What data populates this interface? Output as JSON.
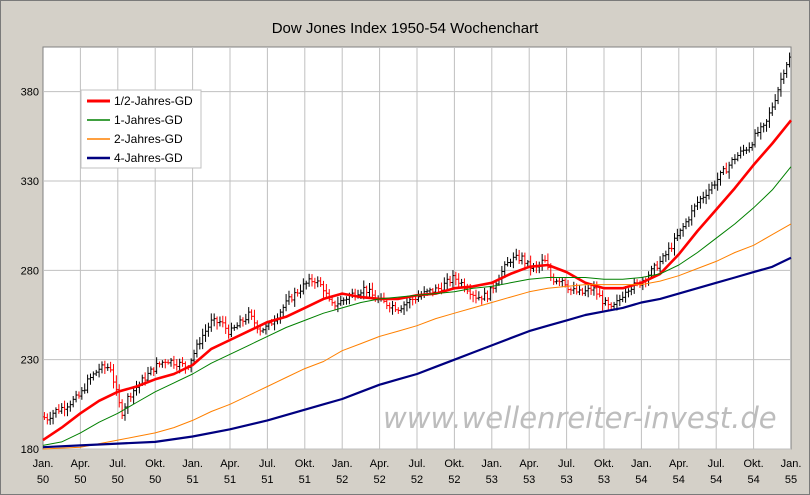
{
  "chart_data": {
    "type": "line",
    "title": "Dow Jones Index 1950-54 Wochenchart",
    "watermark": "www.wellenreiter-invest.de",
    "ylim": [
      180,
      405
    ],
    "yticks": [
      180,
      230,
      280,
      330,
      380
    ],
    "xlim": [
      0,
      20
    ],
    "xticks": [
      {
        "q": 0,
        "label": [
          "Jan.",
          "50"
        ]
      },
      {
        "q": 1,
        "label": [
          "Apr.",
          "50"
        ]
      },
      {
        "q": 2,
        "label": [
          "Jul.",
          "50"
        ]
      },
      {
        "q": 3,
        "label": [
          "Okt.",
          "50"
        ]
      },
      {
        "q": 4,
        "label": [
          "Jan.",
          "51"
        ]
      },
      {
        "q": 5,
        "label": [
          "Apr.",
          "51"
        ]
      },
      {
        "q": 6,
        "label": [
          "Jul.",
          "51"
        ]
      },
      {
        "q": 7,
        "label": [
          "Okt.",
          "51"
        ]
      },
      {
        "q": 8,
        "label": [
          "Jan.",
          "52"
        ]
      },
      {
        "q": 9,
        "label": [
          "Apr.",
          "52"
        ]
      },
      {
        "q": 10,
        "label": [
          "Jul.",
          "52"
        ]
      },
      {
        "q": 11,
        "label": [
          "Okt.",
          "52"
        ]
      },
      {
        "q": 12,
        "label": [
          "Jan.",
          "53"
        ]
      },
      {
        "q": 13,
        "label": [
          "Apr.",
          "53"
        ]
      },
      {
        "q": 14,
        "label": [
          "Jul.",
          "53"
        ]
      },
      {
        "q": 15,
        "label": [
          "Okt.",
          "53"
        ]
      },
      {
        "q": 16,
        "label": [
          "Jan.",
          "54"
        ]
      },
      {
        "q": 17,
        "label": [
          "Apr.",
          "54"
        ]
      },
      {
        "q": 18,
        "label": [
          "Jul.",
          "54"
        ]
      },
      {
        "q": 19,
        "label": [
          "Okt.",
          "54"
        ]
      },
      {
        "q": 20,
        "label": [
          "Jan.",
          "55"
        ]
      }
    ],
    "grid": true,
    "legend_position": "top-left",
    "colors": {
      "background": "#d4d0c8",
      "plot": "#ffffff",
      "grid": "#c0c0c0",
      "bar_up": "#000000",
      "bar_down": "#ff0000"
    },
    "price_anchors": [
      [
        0,
        198
      ],
      [
        0.1,
        197
      ],
      [
        0.3,
        201
      ],
      [
        0.5,
        203
      ],
      [
        0.8,
        207
      ],
      [
        1.0,
        210
      ],
      [
        1.2,
        218
      ],
      [
        1.5,
        225
      ],
      [
        1.8,
        226
      ],
      [
        2.0,
        208
      ],
      [
        2.1,
        200
      ],
      [
        2.3,
        210
      ],
      [
        2.6,
        217
      ],
      [
        3.0,
        226
      ],
      [
        3.3,
        230
      ],
      [
        3.6,
        228
      ],
      [
        3.85,
        226
      ],
      [
        4.0,
        232
      ],
      [
        4.25,
        243
      ],
      [
        4.5,
        251
      ],
      [
        4.75,
        251
      ],
      [
        5.0,
        245
      ],
      [
        5.2,
        249
      ],
      [
        5.5,
        255
      ],
      [
        5.8,
        247
      ],
      [
        6.0,
        248
      ],
      [
        6.3,
        256
      ],
      [
        6.6,
        264
      ],
      [
        7.0,
        272
      ],
      [
        7.25,
        275
      ],
      [
        7.5,
        270
      ],
      [
        7.7,
        260
      ],
      [
        8.0,
        263
      ],
      [
        8.3,
        267
      ],
      [
        8.6,
        270
      ],
      [
        8.9,
        264
      ],
      [
        9.1,
        262
      ],
      [
        9.5,
        259
      ],
      [
        9.8,
        263
      ],
      [
        10.2,
        267
      ],
      [
        10.6,
        270
      ],
      [
        11.0,
        276
      ],
      [
        11.3,
        271
      ],
      [
        11.6,
        265
      ],
      [
        11.9,
        266
      ],
      [
        12.2,
        277
      ],
      [
        12.5,
        286
      ],
      [
        12.8,
        287
      ],
      [
        13.0,
        282
      ],
      [
        13.2,
        281
      ],
      [
        13.4,
        286
      ],
      [
        13.6,
        275
      ],
      [
        13.9,
        275
      ],
      [
        14.1,
        269
      ],
      [
        14.4,
        267
      ],
      [
        14.7,
        270
      ],
      [
        15.0,
        262
      ],
      [
        15.2,
        258
      ],
      [
        15.4,
        263
      ],
      [
        15.6,
        270
      ],
      [
        15.9,
        272
      ],
      [
        16.1,
        276
      ],
      [
        16.3,
        280
      ],
      [
        16.6,
        287
      ],
      [
        17.0,
        300
      ],
      [
        17.5,
        318
      ],
      [
        18.0,
        330
      ],
      [
        18.5,
        343
      ],
      [
        18.9,
        350
      ],
      [
        19.1,
        357
      ],
      [
        19.3,
        360
      ],
      [
        19.6,
        378
      ],
      [
        19.85,
        395
      ],
      [
        20.0,
        400
      ]
    ],
    "series": [
      {
        "name": "1/2-Jahres-GD",
        "color": "#ff0000",
        "values": [
          [
            0,
            185
          ],
          [
            0.5,
            192
          ],
          [
            1,
            200
          ],
          [
            1.5,
            207
          ],
          [
            2,
            212
          ],
          [
            2.5,
            215
          ],
          [
            3,
            219
          ],
          [
            3.5,
            222
          ],
          [
            4,
            227
          ],
          [
            4.5,
            236
          ],
          [
            5,
            241
          ],
          [
            5.5,
            246
          ],
          [
            6,
            251
          ],
          [
            6.5,
            254
          ],
          [
            7,
            259
          ],
          [
            7.5,
            264
          ],
          [
            8,
            267
          ],
          [
            8.5,
            265
          ],
          [
            9,
            264
          ],
          [
            9.5,
            264
          ],
          [
            10,
            266
          ],
          [
            10.5,
            267
          ],
          [
            11,
            270
          ],
          [
            11.5,
            271
          ],
          [
            12,
            273
          ],
          [
            12.5,
            278
          ],
          [
            13,
            282
          ],
          [
            13.5,
            283
          ],
          [
            14,
            279
          ],
          [
            14.5,
            273
          ],
          [
            15,
            270
          ],
          [
            15.5,
            270
          ],
          [
            16,
            273
          ],
          [
            16.5,
            278
          ],
          [
            17,
            289
          ],
          [
            17.5,
            302
          ],
          [
            18,
            314
          ],
          [
            18.5,
            326
          ],
          [
            19,
            339
          ],
          [
            19.5,
            351
          ],
          [
            20,
            364
          ]
        ]
      },
      {
        "name": "1-Jahres-GD",
        "color": "#008000",
        "values": [
          [
            0,
            182
          ],
          [
            0.5,
            184
          ],
          [
            1,
            189
          ],
          [
            1.5,
            195
          ],
          [
            2,
            200
          ],
          [
            2.5,
            206
          ],
          [
            3,
            212
          ],
          [
            3.5,
            217
          ],
          [
            4,
            222
          ],
          [
            4.5,
            228
          ],
          [
            5,
            233
          ],
          [
            5.5,
            238
          ],
          [
            6,
            243
          ],
          [
            6.5,
            248
          ],
          [
            7,
            252
          ],
          [
            7.5,
            256
          ],
          [
            8,
            259
          ],
          [
            8.5,
            262
          ],
          [
            9,
            264
          ],
          [
            9.5,
            265
          ],
          [
            10,
            266
          ],
          [
            10.5,
            267
          ],
          [
            11,
            268
          ],
          [
            11.5,
            270
          ],
          [
            12,
            271
          ],
          [
            12.5,
            273
          ],
          [
            13,
            275
          ],
          [
            13.5,
            276
          ],
          [
            14,
            276
          ],
          [
            14.5,
            276
          ],
          [
            15,
            275
          ],
          [
            15.5,
            275
          ],
          [
            16,
            276
          ],
          [
            16.5,
            278
          ],
          [
            17,
            283
          ],
          [
            17.5,
            290
          ],
          [
            18,
            298
          ],
          [
            18.5,
            306
          ],
          [
            19,
            315
          ],
          [
            19.5,
            325
          ],
          [
            20,
            338
          ]
        ]
      },
      {
        "name": "2-Jahres-GD",
        "color": "#ff8000",
        "values": [
          [
            0,
            180
          ],
          [
            1,
            181
          ],
          [
            2,
            185
          ],
          [
            2.5,
            187
          ],
          [
            3,
            189
          ],
          [
            3.5,
            192
          ],
          [
            4,
            196
          ],
          [
            4.5,
            201
          ],
          [
            5,
            205
          ],
          [
            5.5,
            210
          ],
          [
            6,
            215
          ],
          [
            6.5,
            220
          ],
          [
            7,
            225
          ],
          [
            7.5,
            229
          ],
          [
            8,
            235
          ],
          [
            8.5,
            239
          ],
          [
            9,
            243
          ],
          [
            9.5,
            246
          ],
          [
            10,
            249
          ],
          [
            10.5,
            253
          ],
          [
            11,
            256
          ],
          [
            11.5,
            259
          ],
          [
            12,
            262
          ],
          [
            12.5,
            265
          ],
          [
            13,
            268
          ],
          [
            13.5,
            270
          ],
          [
            14,
            271
          ],
          [
            14.5,
            272
          ],
          [
            15,
            272
          ],
          [
            15.5,
            272
          ],
          [
            16,
            272
          ],
          [
            16.5,
            274
          ],
          [
            17,
            277
          ],
          [
            17.5,
            281
          ],
          [
            18,
            285
          ],
          [
            18.5,
            290
          ],
          [
            19,
            294
          ],
          [
            19.5,
            300
          ],
          [
            20,
            306
          ]
        ]
      },
      {
        "name": "4-Jahres-GD",
        "color": "#000080",
        "values": [
          [
            0,
            181
          ],
          [
            1,
            182
          ],
          [
            2,
            183
          ],
          [
            3,
            184
          ],
          [
            4,
            187
          ],
          [
            5,
            191
          ],
          [
            6,
            196
          ],
          [
            6.5,
            199
          ],
          [
            7,
            202
          ],
          [
            7.5,
            205
          ],
          [
            8,
            208
          ],
          [
            8.5,
            212
          ],
          [
            9,
            216
          ],
          [
            9.5,
            219
          ],
          [
            10,
            222
          ],
          [
            10.5,
            226
          ],
          [
            11,
            230
          ],
          [
            11.5,
            234
          ],
          [
            12,
            238
          ],
          [
            12.5,
            242
          ],
          [
            13,
            246
          ],
          [
            13.5,
            249
          ],
          [
            14,
            252
          ],
          [
            14.5,
            255
          ],
          [
            15,
            257
          ],
          [
            15.5,
            259
          ],
          [
            16,
            262
          ],
          [
            16.5,
            264
          ],
          [
            17,
            267
          ],
          [
            17.5,
            270
          ],
          [
            18,
            273
          ],
          [
            18.5,
            276
          ],
          [
            19,
            279
          ],
          [
            19.5,
            282
          ],
          [
            20,
            287
          ]
        ]
      }
    ]
  }
}
